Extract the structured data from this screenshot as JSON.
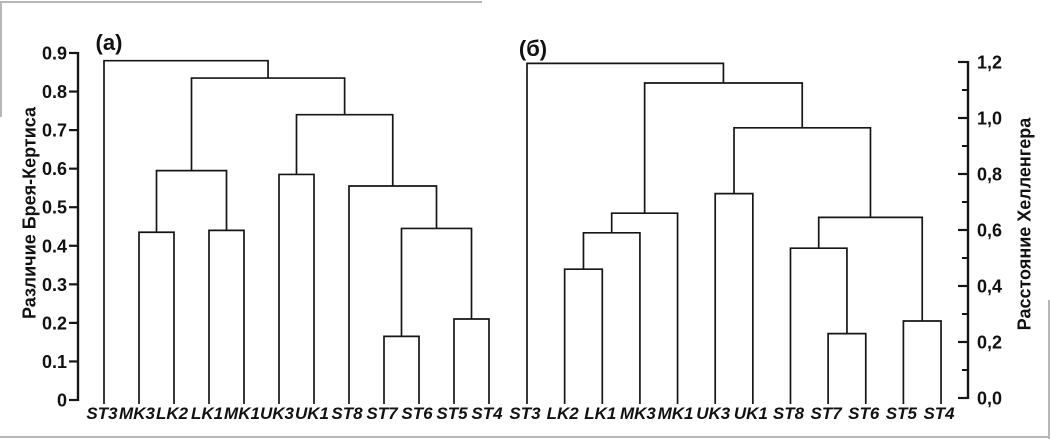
{
  "colors": {
    "line": "#161616",
    "text": "#111111",
    "background": "#ffffff",
    "scan_edge": "#b7b7b7"
  },
  "chart_data": [
    {
      "type": "dendrogram",
      "panel_label": "(а)",
      "ylabel": "Различие Брея-Кертиса",
      "axis_side": "left",
      "ylim": [
        0,
        0.9
      ],
      "yticks": {
        "labels": [
          "0.9",
          "0.8",
          "0.7",
          "0.6",
          "0.5",
          "0.4",
          "0.3",
          "0.2",
          "0.1",
          "0"
        ],
        "values": [
          0.9,
          0.8,
          0.7,
          0.6,
          0.5,
          0.4,
          0.3,
          0.2,
          0.1,
          0
        ]
      },
      "minor_tick_values": [],
      "leaves": [
        "ST3",
        "MK3",
        "LK2",
        "LK1",
        "MK1",
        "UK3",
        "UK1",
        "ST8",
        "ST7",
        "ST6",
        "ST5",
        "ST4"
      ],
      "linkage": {
        "h": 0.88,
        "c": [
          "ST3",
          {
            "h": 0.835,
            "c": [
              {
                "h": 0.595,
                "c": [
                  {
                    "h": 0.435,
                    "c": [
                      "MK3",
                      "LK2"
                    ]
                  },
                  {
                    "h": 0.44,
                    "c": [
                      "LK1",
                      "MK1"
                    ]
                  }
                ]
              },
              {
                "h": 0.74,
                "c": [
                  {
                    "h": 0.585,
                    "c": [
                      "UK3",
                      "UK1"
                    ]
                  },
                  {
                    "h": 0.555,
                    "c": [
                      "ST8",
                      {
                        "h": 0.445,
                        "c": [
                          {
                            "h": 0.165,
                            "c": [
                              "ST7",
                              "ST6"
                            ]
                          },
                          {
                            "h": 0.21,
                            "c": [
                              "ST5",
                              "ST4"
                            ]
                          }
                        ]
                      }
                    ]
                  }
                ]
              }
            ]
          }
        ]
      }
    },
    {
      "type": "dendrogram",
      "panel_label": "(б)",
      "ylabel": "Расстояние Хелленгера",
      "axis_side": "right",
      "ylim": [
        0,
        1.2
      ],
      "yticks": {
        "labels": [
          "1,2",
          "1,0",
          "0,8",
          "0,6",
          "0,4",
          "0,2",
          "0,0"
        ],
        "values": [
          1.2,
          1.0,
          0.8,
          0.6,
          0.4,
          0.2,
          0.0
        ]
      },
      "minor_tick_values": [
        1.1,
        0.9,
        0.7,
        0.5,
        0.3,
        0.1
      ],
      "leaves": [
        "ST3",
        "LK2",
        "LK1",
        "MK3",
        "MK1",
        "UK3",
        "UK1",
        "ST8",
        "ST7",
        "ST6",
        "ST5",
        "ST4"
      ],
      "linkage": {
        "h": 1.195,
        "c": [
          "ST3",
          {
            "h": 1.125,
            "c": [
              {
                "h": 0.66,
                "c": [
                  {
                    "h": 0.59,
                    "c": [
                      {
                        "h": 0.46,
                        "c": [
                          "LK2",
                          "LK1"
                        ]
                      },
                      "MK3"
                    ]
                  },
                  "MK1"
                ]
              },
              {
                "h": 0.965,
                "c": [
                  {
                    "h": 0.73,
                    "c": [
                      "UK3",
                      "UK1"
                    ]
                  },
                  {
                    "h": 0.645,
                    "c": [
                      {
                        "h": 0.535,
                        "c": [
                          "ST8",
                          {
                            "h": 0.23,
                            "c": [
                              "ST7",
                              "ST6"
                            ]
                          }
                        ]
                      },
                      {
                        "h": 0.275,
                        "c": [
                          "ST5",
                          "ST4"
                        ]
                      }
                    ]
                  }
                ]
              }
            ]
          }
        ]
      }
    }
  ]
}
